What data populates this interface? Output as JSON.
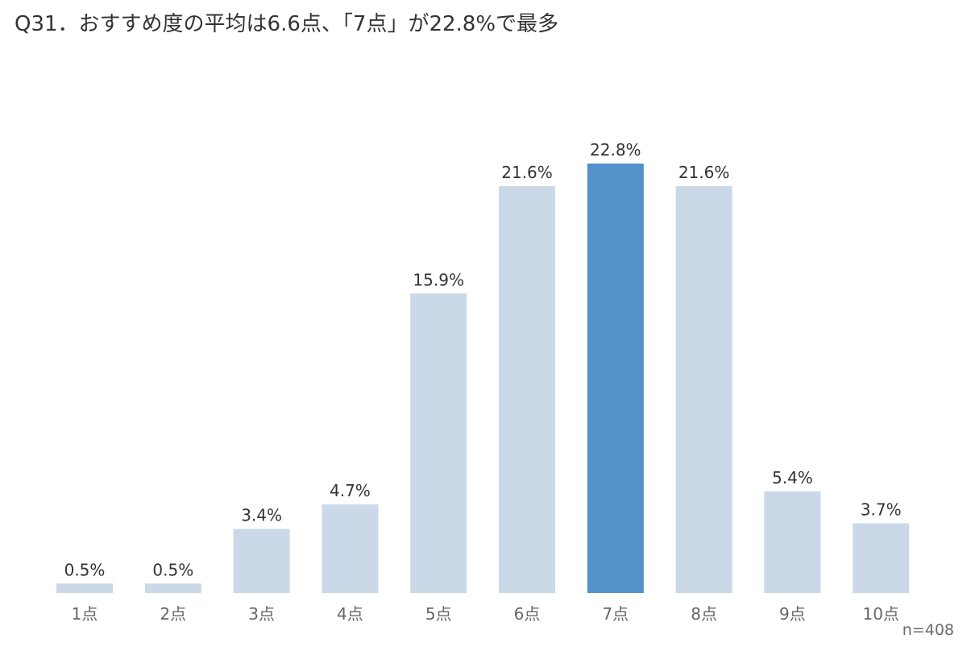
{
  "title": "Q31．おすすめ度の平均は6.6点、「7点」が22.8%で最多",
  "sample_size": "n=408",
  "colors": {
    "bar_default": "#cad8e8",
    "bar_highlight": "#5392ca",
    "value_text": "#333333",
    "tick_text": "#666666"
  },
  "chart_data": {
    "type": "bar",
    "title": "Q31．おすすめ度の平均は6.6点、「7点」が22.8%で最多",
    "categories": [
      "1点",
      "2点",
      "3点",
      "4点",
      "5点",
      "6点",
      "7点",
      "8点",
      "9点",
      "10点"
    ],
    "values": [
      0.5,
      0.5,
      3.4,
      4.7,
      15.9,
      21.6,
      22.8,
      21.6,
      5.4,
      3.7
    ],
    "value_labels": [
      "0.5%",
      "0.5%",
      "3.4%",
      "4.7%",
      "15.9%",
      "21.6%",
      "22.8%",
      "21.6%",
      "5.4%",
      "3.7%"
    ],
    "highlight_category": "7点",
    "ylim": [
      0,
      22.8
    ],
    "xlabel": "",
    "ylabel": "",
    "grid": false,
    "legend": "none"
  }
}
